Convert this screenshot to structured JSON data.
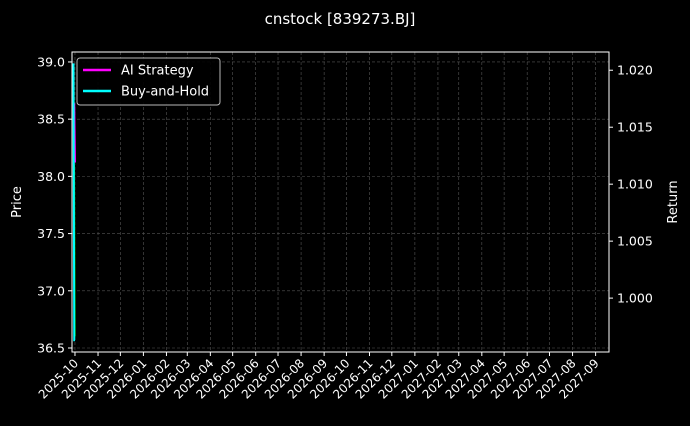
{
  "chart_data": {
    "type": "line",
    "title": "cnstock [839273.BJ]",
    "ylabel": "Price",
    "y2label": "Return",
    "xlim": [
      "2025-09-27",
      "2027-09-19"
    ],
    "ylim": [
      36.465,
      39.087
    ],
    "y2lim": [
      0.99527,
      1.0216
    ],
    "grid": true,
    "legend_placement": "top-left",
    "x_ticks": [
      "2025-10",
      "2025-11",
      "2025-12",
      "2026-01",
      "2026-02",
      "2026-03",
      "2026-04",
      "2026-05",
      "2026-06",
      "2026-07",
      "2026-08",
      "2026-09",
      "2026-10",
      "2026-11",
      "2026-12",
      "2027-01",
      "2027-02",
      "2027-03",
      "2027-04",
      "2027-05",
      "2027-06",
      "2027-07",
      "2027-08",
      "2027-09"
    ],
    "y_ticks": [
      "36.5",
      "37.0",
      "37.5",
      "38.0",
      "38.5",
      "39.0"
    ],
    "y2_ticks": [
      "1.000",
      "1.005",
      "1.010",
      "1.015",
      "1.020"
    ],
    "price_series": {
      "color": "#00c000",
      "x": [
        "2025-09-30",
        "2025-10-01"
      ],
      "values": [
        38.1,
        36.6
      ]
    },
    "series": [
      {
        "name": "AI Strategy",
        "color": "#ff00ff",
        "axis": "right",
        "x": [
          "2025-09-30",
          "2025-10-01"
        ],
        "values": [
          1.0171,
          1.0119
        ]
      },
      {
        "name": "Buy-and-Hold",
        "color": "#00ffff",
        "axis": "right",
        "x": [
          "2025-09-29",
          "2025-09-30",
          "2025-10-01"
        ],
        "values": [
          1.0206,
          0.9963,
          0.9963
        ]
      }
    ]
  }
}
